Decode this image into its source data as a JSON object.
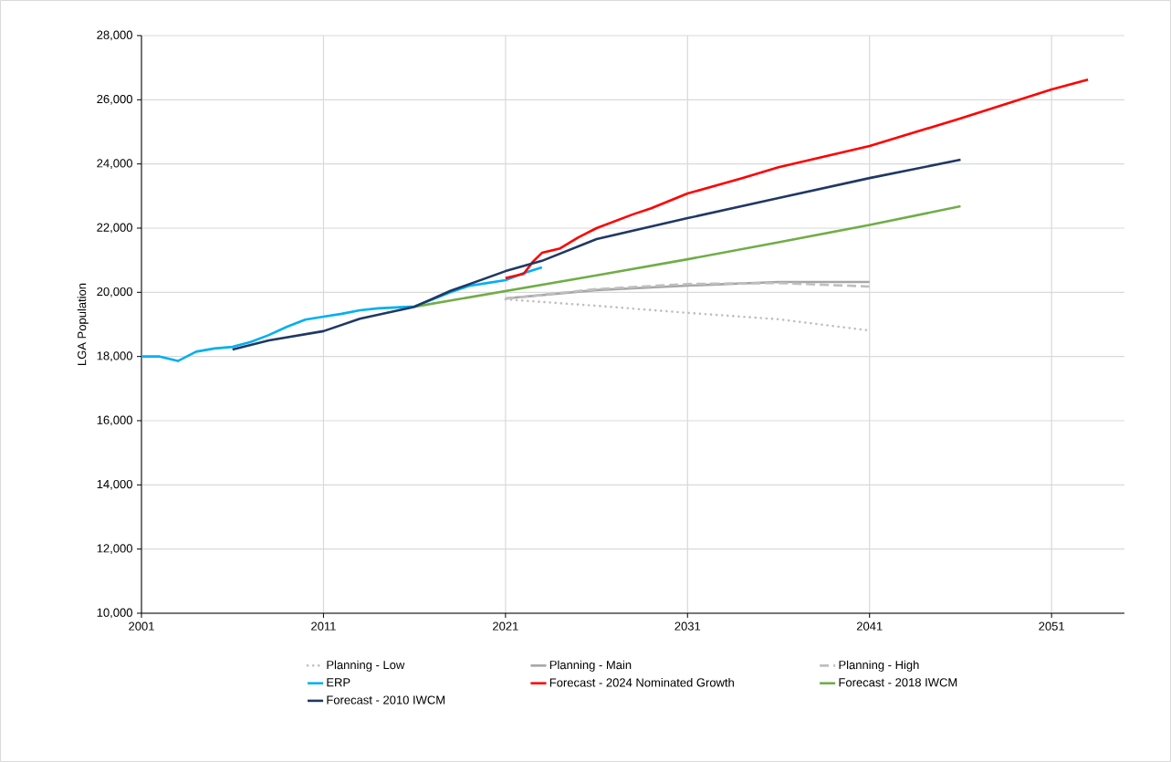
{
  "chart_data": {
    "type": "line",
    "ylabel": "LGA Population",
    "xlim": [
      2001,
      2055
    ],
    "xticks": [
      2001,
      2011,
      2021,
      2031,
      2041,
      2051
    ],
    "ylim": [
      10000,
      28000
    ],
    "yticks": [
      {
        "value": 10000,
        "label": "10,000"
      },
      {
        "value": 12000,
        "label": "12,000"
      },
      {
        "value": 14000,
        "label": "14,000"
      },
      {
        "value": 16000,
        "label": "16,000"
      },
      {
        "value": 18000,
        "label": "18,000"
      },
      {
        "value": 20000,
        "label": "20,000"
      },
      {
        "value": 22000,
        "label": "22,000"
      },
      {
        "value": 24000,
        "label": "24,000"
      },
      {
        "value": 26000,
        "label": "26,000"
      },
      {
        "value": 28000,
        "label": "28,000"
      }
    ],
    "grid": true,
    "legend": "bottom",
    "marker": "none",
    "series": [
      {
        "name": "Planning - Low",
        "color": "#bfbfbf",
        "line_style": "dotted",
        "x": [
          2021,
          2026,
          2031,
          2036,
          2041
        ],
        "values": [
          19780,
          19580,
          19360,
          19160,
          18810
        ]
      },
      {
        "name": "Planning - Main",
        "color": "#a6a6a6",
        "line_style": "solid",
        "x": [
          2021,
          2026,
          2031,
          2036,
          2041
        ],
        "values": [
          19810,
          20070,
          20210,
          20320,
          20320
        ]
      },
      {
        "name": "Planning - High",
        "color": "#bfbfbf",
        "line_style": "dashed",
        "x": [
          2021,
          2026,
          2031,
          2036,
          2041
        ],
        "values": [
          19800,
          20100,
          20260,
          20290,
          20180
        ]
      },
      {
        "name": "ERP",
        "color": "#00b0f0",
        "line_style": "solid",
        "x": [
          2001,
          2002,
          2003,
          2004,
          2005,
          2006,
          2007,
          2008,
          2009,
          2010,
          2011,
          2012,
          2013,
          2014,
          2015,
          2016,
          2017,
          2018,
          2019,
          2020,
          2021,
          2022,
          2023
        ],
        "values": [
          18000,
          18000,
          17860,
          18150,
          18250,
          18300,
          18450,
          18670,
          18930,
          19150,
          19240,
          19330,
          19440,
          19500,
          19530,
          19560,
          19780,
          20010,
          20200,
          20290,
          20380,
          20600,
          20780
        ]
      },
      {
        "name": "Forecast - 2024 Nominated Growth",
        "color": "#ff0000",
        "line_style": "solid",
        "x": [
          2021,
          2022,
          2022.5,
          2023,
          2024,
          2025,
          2026,
          2028,
          2029,
          2031,
          2034,
          2036,
          2041,
          2046,
          2051,
          2053
        ],
        "values": [
          20440,
          20580,
          20950,
          21230,
          21370,
          21710,
          22000,
          22430,
          22620,
          23080,
          23560,
          23900,
          24560,
          25420,
          26320,
          26630
        ]
      },
      {
        "name": "Forecast - 2018 IWCM",
        "color": "#70ad47",
        "line_style": "solid",
        "x": [
          2016,
          2021,
          2026,
          2031,
          2036,
          2041,
          2046
        ],
        "values": [
          19550,
          20040,
          20530,
          21030,
          21560,
          22100,
          22680
        ]
      },
      {
        "name": "Forecast - 2010 IWCM",
        "color": "#203864",
        "line_style": "solid",
        "x": [
          2006,
          2008,
          2011,
          2013,
          2016,
          2018,
          2021,
          2023,
          2026,
          2031,
          2036,
          2041,
          2046
        ],
        "values": [
          18220,
          18500,
          18790,
          19180,
          19550,
          20050,
          20660,
          20980,
          21660,
          22310,
          22940,
          23560,
          24130
        ]
      }
    ]
  }
}
